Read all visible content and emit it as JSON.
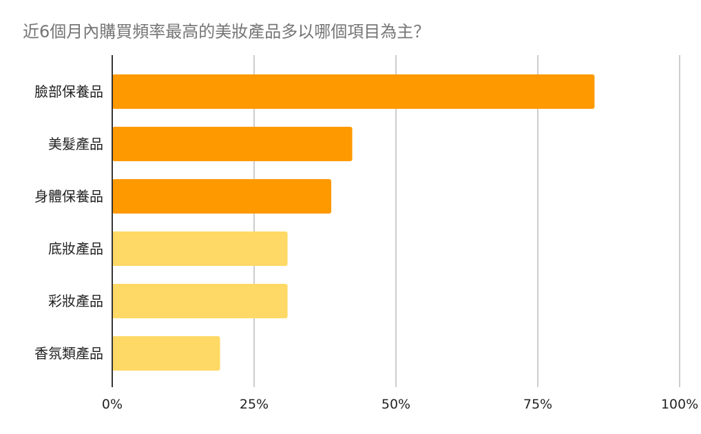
{
  "chart_data": {
    "type": "bar",
    "orientation": "horizontal",
    "title": "近6個月內購買頻率最高的美妝產品多以哪個項目為主？",
    "categories": [
      "臉部保養品",
      "美髮產品",
      "身體保養品",
      "底妝產品",
      "彩妝產品",
      "香氛類產品"
    ],
    "values": [
      85,
      42.3,
      38.6,
      30.9,
      30.9,
      19
    ],
    "colors": [
      "#ff9900",
      "#ff9900",
      "#ff9900",
      "#ffd966",
      "#ffd966",
      "#ffd966"
    ],
    "xlim": [
      0,
      100
    ],
    "xticks": [
      0,
      25,
      50,
      75,
      100
    ],
    "xtick_labels": [
      "0%",
      "25%",
      "50%",
      "75%",
      "100%"
    ],
    "grid": true,
    "legend": "none"
  }
}
